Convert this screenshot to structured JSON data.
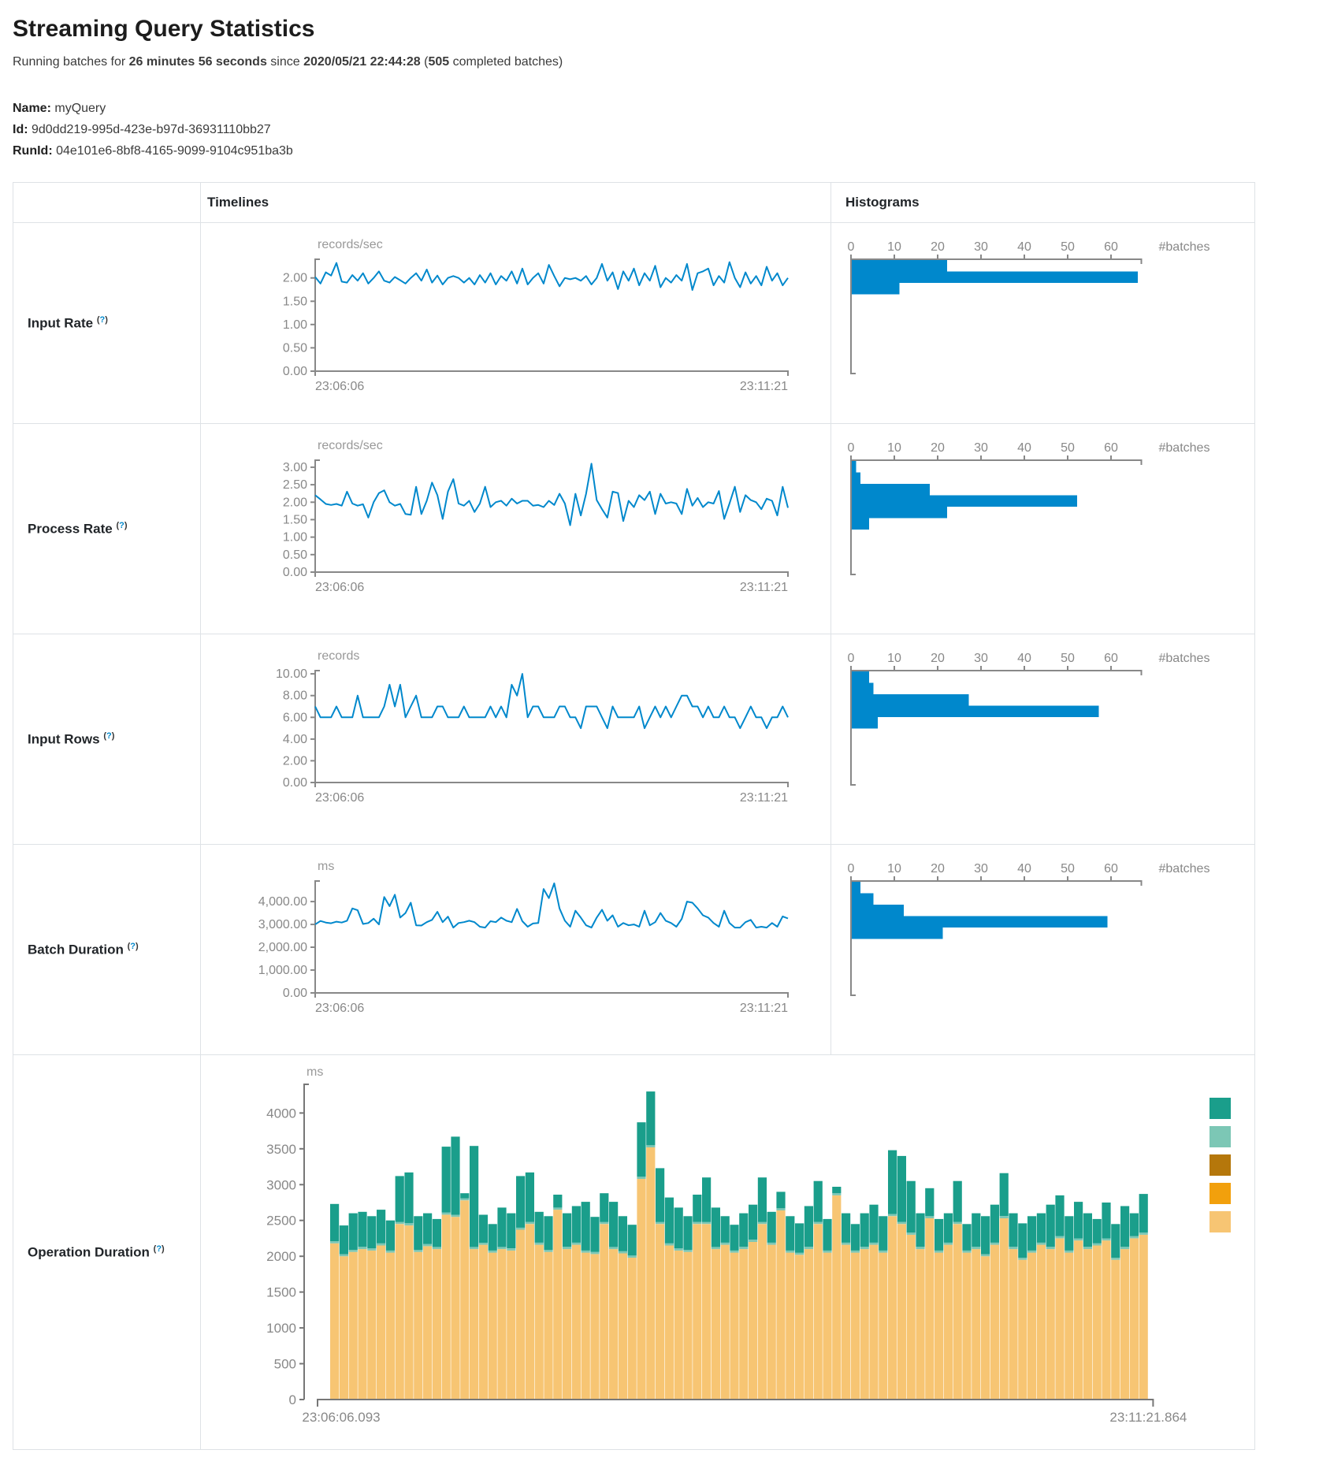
{
  "page": {
    "title": "Streaming Query Statistics",
    "running_prefix": "Running batches for ",
    "running_duration": "26 minutes 56 seconds",
    "running_mid": " since ",
    "running_since": "2020/05/21 22:44:28",
    "running_open": " (",
    "running_count": "505",
    "running_suffix": " completed batches)"
  },
  "meta": {
    "name_label": "Name:",
    "name": "myQuery",
    "id_label": "Id:",
    "id": "9d0dd219-995d-423e-b97d-36931110bb27",
    "runid_label": "RunId:",
    "runid": "04e101e6-8bf8-4165-9099-9104c951ba3b"
  },
  "table": {
    "col_timelines": "Timelines",
    "col_histograms": "Histograms"
  },
  "ui": {
    "help_open": "(",
    "help_q": "?",
    "help_close": ")"
  },
  "colors": {
    "line_blue": "#0088cc",
    "bar_blue": "#0088cc",
    "axis_gray": "#888888",
    "legend": [
      "#1A9E8B",
      "#7CC7B5",
      "#B5770B",
      "#F2A00C",
      "#F7C573"
    ],
    "stack_tan": "#F7C573",
    "stack_sliver": "#7CC7B5",
    "stack_green": "#1A9E8B"
  },
  "chart_data": [
    {
      "row": "Input Rate",
      "timeline": {
        "type": "line",
        "title": "records/sec",
        "x_start": "23:06:06",
        "x_end": "23:11:21",
        "ymax": 2.4,
        "yticks": [
          {
            "v": 2,
            "t": "2.00"
          },
          {
            "v": 1.5,
            "t": "1.50"
          },
          {
            "v": 1,
            "t": "1.00"
          },
          {
            "v": 0.5,
            "t": "0.50"
          },
          {
            "v": 0,
            "t": "0.00"
          }
        ],
        "values": [
          2.02,
          1.88,
          2.12,
          2.05,
          2.32,
          1.92,
          1.9,
          2.06,
          1.94,
          2.1,
          1.88,
          2.0,
          2.14,
          1.94,
          1.9,
          2.02,
          1.95,
          1.88,
          2.0,
          2.1,
          1.94,
          2.18,
          1.9,
          2.05,
          1.86,
          2.0,
          2.04,
          2.0,
          1.9,
          2.0,
          1.86,
          2.06,
          1.9,
          2.1,
          1.86,
          2.04,
          1.94,
          2.14,
          1.88,
          2.2,
          1.86,
          2.0,
          2.1,
          1.88,
          2.28,
          2.04,
          1.82,
          2.0,
          1.97,
          2.0,
          1.94,
          2.04,
          1.86,
          2.0,
          2.3,
          1.94,
          2.12,
          1.76,
          2.14,
          1.94,
          2.2,
          1.84,
          2.1,
          1.94,
          2.26,
          1.8,
          2.0,
          1.9,
          2.06,
          1.94,
          2.3,
          1.74,
          2.1,
          2.14,
          2.2,
          1.84,
          2.04,
          1.9,
          2.34,
          2.0,
          1.8,
          2.12,
          1.88,
          2.04,
          1.84,
          2.24,
          1.94,
          2.1,
          1.84,
          2.0
        ]
      },
      "histogram": {
        "type": "bar",
        "orientation": "horizontal",
        "xlabel": "#batches",
        "xticks": [
          0,
          10,
          20,
          30,
          40,
          50,
          60
        ],
        "xmax": 67,
        "values": [
          22,
          66,
          11
        ]
      }
    },
    {
      "row": "Process Rate",
      "timeline": {
        "type": "line",
        "title": "records/sec",
        "x_start": "23:06:06",
        "x_end": "23:11:21",
        "ymax": 3.2,
        "yticks": [
          {
            "v": 3,
            "t": "3.00"
          },
          {
            "v": 2.5,
            "t": "2.50"
          },
          {
            "v": 2,
            "t": "2.00"
          },
          {
            "v": 1.5,
            "t": "1.50"
          },
          {
            "v": 1,
            "t": "1.00"
          },
          {
            "v": 0.5,
            "t": "0.50"
          },
          {
            "v": 0,
            "t": "0.00"
          }
        ],
        "values": [
          2.2,
          2.08,
          1.95,
          1.92,
          1.95,
          1.9,
          2.3,
          1.96,
          1.9,
          1.94,
          1.56,
          2.0,
          2.26,
          2.34,
          2.0,
          1.9,
          1.95,
          1.66,
          1.64,
          2.44,
          1.66,
          2.04,
          2.56,
          2.2,
          1.52,
          2.3,
          2.66,
          1.96,
          1.9,
          2.04,
          1.72,
          1.96,
          2.44,
          1.86,
          2.0,
          2.04,
          1.9,
          2.1,
          1.96,
          2.04,
          2.04,
          1.9,
          1.92,
          1.86,
          2.04,
          1.92,
          2.24,
          1.96,
          1.34,
          2.24,
          1.62,
          2.24,
          3.1,
          2.06,
          1.8,
          1.56,
          2.3,
          2.26,
          1.46,
          2.04,
          1.86,
          2.2,
          2.06,
          2.3,
          1.66,
          2.24,
          1.96,
          2.0,
          1.96,
          1.66,
          2.38,
          1.9,
          2.12,
          1.86,
          2.0,
          1.96,
          2.32,
          1.52,
          1.96,
          2.44,
          1.72,
          2.2,
          2.06,
          2.0,
          1.8,
          2.1,
          2.04,
          1.62,
          2.44,
          1.84
        ]
      },
      "histogram": {
        "type": "bar",
        "orientation": "horizontal",
        "xlabel": "#batches",
        "xticks": [
          0,
          10,
          20,
          30,
          40,
          50,
          60
        ],
        "xmax": 67,
        "values": [
          1,
          2,
          18,
          52,
          22,
          4
        ]
      }
    },
    {
      "row": "Input Rows",
      "timeline": {
        "type": "line",
        "title": "records",
        "x_start": "23:06:06",
        "x_end": "23:11:21",
        "ymax": 10.3,
        "yticks": [
          {
            "v": 10,
            "t": "10.00"
          },
          {
            "v": 8,
            "t": "8.00"
          },
          {
            "v": 6,
            "t": "6.00"
          },
          {
            "v": 4,
            "t": "4.00"
          },
          {
            "v": 2,
            "t": "2.00"
          },
          {
            "v": 0,
            "t": "0.00"
          }
        ],
        "values": [
          7,
          6,
          6,
          6,
          7,
          6,
          6,
          6,
          8,
          6,
          6,
          6,
          6,
          7,
          9,
          7,
          9,
          6,
          7,
          8,
          6,
          6,
          6,
          7,
          7,
          6,
          6,
          6,
          7,
          6,
          6,
          6,
          6,
          7,
          6,
          7,
          6,
          9,
          8,
          10,
          6,
          7,
          7,
          6,
          6,
          6,
          7,
          7,
          6,
          6,
          5,
          7,
          7,
          7,
          6,
          5,
          7,
          6,
          6,
          6,
          6,
          7,
          5,
          6,
          7,
          6,
          7,
          6,
          7,
          8,
          8,
          7,
          7,
          6,
          7,
          6,
          6,
          7,
          6,
          6,
          5,
          6,
          7,
          6,
          6,
          5,
          6,
          6,
          7,
          6
        ]
      },
      "histogram": {
        "type": "bar",
        "orientation": "horizontal",
        "xlabel": "#batches",
        "xticks": [
          0,
          10,
          20,
          30,
          40,
          50,
          60
        ],
        "xmax": 67,
        "values": [
          4,
          5,
          27,
          57,
          6
        ]
      }
    },
    {
      "row": "Batch Duration",
      "timeline": {
        "type": "line",
        "title": "ms",
        "x_start": "23:06:06",
        "x_end": "23:11:21",
        "ymax": 4900,
        "yticks": [
          {
            "v": 4000,
            "t": "4,000.00"
          },
          {
            "v": 3000,
            "t": "3,000.00"
          },
          {
            "v": 2000,
            "t": "2,000.00"
          },
          {
            "v": 1000,
            "t": "1,000.00"
          },
          {
            "v": 0,
            "t": "0.00"
          }
        ],
        "values": [
          3000,
          3150,
          3080,
          3050,
          3120,
          3080,
          3160,
          3700,
          3620,
          3020,
          3060,
          3250,
          3000,
          4200,
          3800,
          4300,
          3300,
          3500,
          3950,
          2960,
          2950,
          3100,
          3200,
          3550,
          3100,
          3340,
          2860,
          3060,
          3100,
          3160,
          3100,
          2900,
          2860,
          3140,
          3100,
          3300,
          3160,
          3100,
          3680,
          3140,
          2900,
          3040,
          3060,
          4550,
          4150,
          4800,
          3700,
          3160,
          2900,
          3600,
          3300,
          2960,
          2860,
          3300,
          3640,
          3160,
          3400,
          2900,
          3060,
          2960,
          3000,
          2900,
          3600,
          2960,
          3100,
          3500,
          3160,
          3060,
          2900,
          3240,
          4000,
          3950,
          3700,
          3400,
          3300,
          3060,
          2900,
          3600,
          3060,
          2860,
          2860,
          3100,
          3200,
          2860,
          2900,
          2860,
          3060,
          2900,
          3350,
          3260
        ]
      },
      "histogram": {
        "type": "bar",
        "orientation": "horizontal",
        "xlabel": "#batches",
        "xticks": [
          0,
          10,
          20,
          30,
          40,
          50,
          60
        ],
        "xmax": 67,
        "values": [
          2,
          5,
          12,
          59,
          21
        ]
      }
    },
    {
      "row": "Operation Duration",
      "stacked": {
        "type": "area",
        "title": "ms",
        "x_start": "23:06:06.093",
        "x_end": "23:11:21.864",
        "ymax": 4400,
        "sliver": 30,
        "yticks": [
          {
            "v": 4000,
            "t": "4000"
          },
          {
            "v": 3500,
            "t": "3500"
          },
          {
            "v": 3000,
            "t": "3000"
          },
          {
            "v": 2500,
            "t": "2500"
          },
          {
            "v": 2000,
            "t": "2000"
          },
          {
            "v": 1500,
            "t": "1500"
          },
          {
            "v": 1000,
            "t": "1000"
          },
          {
            "v": 500,
            "t": "500"
          },
          {
            "v": 0,
            "t": "0"
          }
        ],
        "tan": [
          2180,
          2000,
          2060,
          2100,
          2080,
          2150,
          2050,
          2450,
          2430,
          2060,
          2140,
          2100,
          2580,
          2550,
          2780,
          2100,
          2160,
          2050,
          2100,
          2080,
          2370,
          2450,
          2160,
          2060,
          2650,
          2100,
          2160,
          2050,
          2030,
          2450,
          2100,
          2040,
          1980,
          3080,
          3520,
          2450,
          2150,
          2080,
          2060,
          2450,
          2450,
          2100,
          2160,
          2050,
          2100,
          2200,
          2450,
          2160,
          2640,
          2050,
          2020,
          2100,
          2450,
          2050,
          2850,
          2160,
          2050,
          2100,
          2160,
          2050,
          2560,
          2450,
          2300,
          2100,
          2530,
          2050,
          2160,
          2450,
          2050,
          2100,
          2000,
          2160,
          2530,
          2100,
          1950,
          2050,
          2160,
          2100,
          2250,
          2050,
          2220,
          2100,
          2150,
          2220,
          1950,
          2100,
          2250,
          2300
        ],
        "total": [
          2730,
          2430,
          2600,
          2620,
          2560,
          2650,
          2500,
          3120,
          3170,
          2560,
          2600,
          2520,
          3530,
          3670,
          2880,
          3540,
          2580,
          2450,
          2680,
          2600,
          3120,
          3170,
          2620,
          2560,
          2860,
          2600,
          2700,
          2760,
          2550,
          2880,
          2760,
          2560,
          2440,
          3870,
          4300,
          3230,
          2820,
          2680,
          2560,
          2860,
          3100,
          2680,
          2560,
          2440,
          2600,
          2720,
          3100,
          2620,
          2900,
          2560,
          2460,
          2700,
          3050,
          2520,
          2970,
          2600,
          2450,
          2600,
          2720,
          2560,
          3480,
          3400,
          3050,
          2600,
          2950,
          2520,
          2600,
          3050,
          2450,
          2600,
          2560,
          2720,
          3160,
          2600,
          2460,
          2560,
          2600,
          2720,
          2850,
          2560,
          2760,
          2600,
          2520,
          2750,
          2450,
          2700,
          2600,
          2870
        ]
      }
    }
  ]
}
